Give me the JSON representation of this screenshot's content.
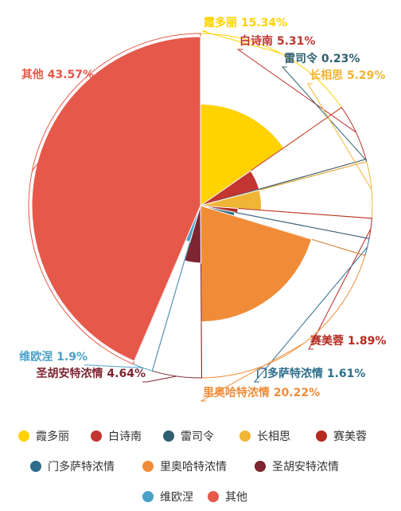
{
  "chart_data": {
    "type": "pie",
    "subtype": "nightingale-rose",
    "title": "",
    "categories": [
      "霞多丽",
      "白诗南",
      "雷司令",
      "长相思",
      "赛美蓉",
      "门多萨特浓情",
      "里奥哈特浓情",
      "圣胡安特浓情",
      "维欧涅",
      "其他"
    ],
    "values": [
      15.34,
      5.31,
      0.23,
      5.29,
      1.89,
      1.61,
      20.22,
      4.64,
      1.9,
      43.57
    ],
    "labels": [
      "霞多丽 15.34%",
      "白诗南 5.31%",
      "雷司令 0.23%",
      "长相思 5.29%",
      "赛美蓉 1.89%",
      "门多萨特浓情 1.61%",
      "里奥哈特浓情 20.22%",
      "圣胡安特浓情 4.64%",
      "维欧涅 1.9%",
      "其他 43.57%"
    ],
    "colors": [
      "#ffd200",
      "#c23531",
      "#2f5f6e",
      "#f0b534",
      "#b52a22",
      "#2e6e8c",
      "#f08c38",
      "#7d2531",
      "#4aa0c8",
      "#e5584a"
    ],
    "legend_position": "bottom",
    "grid": false
  }
}
